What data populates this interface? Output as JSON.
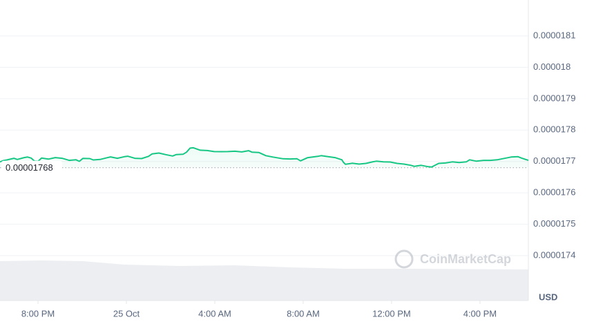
{
  "chart_data": {
    "type": "line",
    "x": [
      -5.72,
      -5.56,
      -5.41,
      -5.09,
      -4.94,
      -4.63,
      -4.47,
      -4.31,
      -4.16,
      -4.0,
      -3.84,
      -3.53,
      -3.22,
      -2.91,
      -2.59,
      -2.28,
      -2.13,
      -1.97,
      -1.66,
      -1.5,
      -1.19,
      -0.88,
      -0.72,
      -0.41,
      -0.09,
      0.06,
      0.38,
      0.69,
      1.0,
      1.16,
      1.47,
      1.78,
      2.09,
      2.25,
      2.56,
      2.72,
      2.88,
      3.03,
      3.34,
      3.66,
      3.97,
      4.28,
      4.59,
      4.91,
      5.22,
      5.53,
      5.69,
      6.0,
      6.31,
      6.63,
      7.09,
      7.41,
      7.72,
      7.88,
      8.19,
      8.66,
      8.81,
      9.13,
      9.44,
      9.75,
      9.81,
      9.91,
      10.22,
      10.53,
      10.84,
      11.16,
      11.31,
      11.63,
      11.94,
      12.25,
      12.56,
      12.88,
      13.03,
      13.34,
      13.66,
      13.81,
      14.13,
      14.44,
      14.75,
      15.06,
      15.38,
      15.53,
      15.84,
      16.16,
      16.47,
      16.78,
      17.09,
      17.41,
      17.72,
      17.88,
      18.19
    ],
    "series": [
      {
        "color": "#16c784",
        "below_color": "#ea3943",
        "values": [
          1.76987e-05,
          1.77031e-05,
          1.77048e-05,
          1.77101e-05,
          1.77064e-05,
          1.77123e-05,
          1.77141e-05,
          1.77108e-05,
          1.77013e-05,
          1.77004e-05,
          1.77108e-05,
          1.77075e-05,
          1.77123e-05,
          1.77101e-05,
          1.77035e-05,
          1.77053e-05,
          1.77004e-05,
          1.77097e-05,
          1.77092e-05,
          1.77048e-05,
          1.77064e-05,
          1.77119e-05,
          1.77145e-05,
          1.77101e-05,
          1.77152e-05,
          1.77167e-05,
          1.77101e-05,
          1.77092e-05,
          1.77163e-05,
          1.7724e-05,
          1.77268e-05,
          1.77218e-05,
          1.77174e-05,
          1.77218e-05,
          1.77229e-05,
          1.77295e-05,
          1.77426e-05,
          1.77437e-05,
          1.7736e-05,
          1.77349e-05,
          1.77316e-05,
          1.77312e-05,
          1.77316e-05,
          1.77327e-05,
          1.77305e-05,
          1.77343e-05,
          1.77295e-05,
          1.77284e-05,
          1.77185e-05,
          1.77141e-05,
          1.77086e-05,
          1.77079e-05,
          1.77086e-05,
          1.7702e-05,
          1.77119e-05,
          1.77163e-05,
          1.77185e-05,
          1.77152e-05,
          1.77123e-05,
          1.77053e-05,
          1.76982e-05,
          1.7691e-05,
          1.76943e-05,
          1.76916e-05,
          1.76938e-05,
          1.76991e-05,
          1.77009e-05,
          1.76987e-05,
          1.76982e-05,
          1.76938e-05,
          1.76916e-05,
          1.76877e-05,
          1.76844e-05,
          1.76877e-05,
          1.76833e-05,
          1.76822e-05,
          1.76938e-05,
          1.76952e-05,
          1.76987e-05,
          1.76965e-05,
          1.76987e-05,
          1.77053e-05,
          1.77009e-05,
          1.77035e-05,
          1.77035e-05,
          1.77053e-05,
          1.77097e-05,
          1.77141e-05,
          1.77152e-05,
          1.77108e-05,
          1.77035e-05
        ]
      }
    ],
    "baseline": 1.768e-05,
    "xlim": [
      -5.72,
      18.19
    ],
    "xticks": [
      {
        "value": -4,
        "label": "8:00 PM"
      },
      {
        "value": 0,
        "label": "25 Oct"
      },
      {
        "value": 4,
        "label": "4:00 AM"
      },
      {
        "value": 8,
        "label": "8:00 AM"
      },
      {
        "value": 12,
        "label": "12:00 PM"
      },
      {
        "value": 16,
        "label": "4:00 PM"
      }
    ],
    "ylim": [
      1.73e-05,
      1.82e-05
    ],
    "yticks": [
      1.74e-05,
      1.75e-05,
      1.76e-05,
      1.77e-05,
      1.78e-05,
      1.79e-05,
      1.8e-05,
      1.81e-05
    ],
    "grid": true,
    "unit_label": "USD",
    "watermark": "CoinMarketCap"
  }
}
